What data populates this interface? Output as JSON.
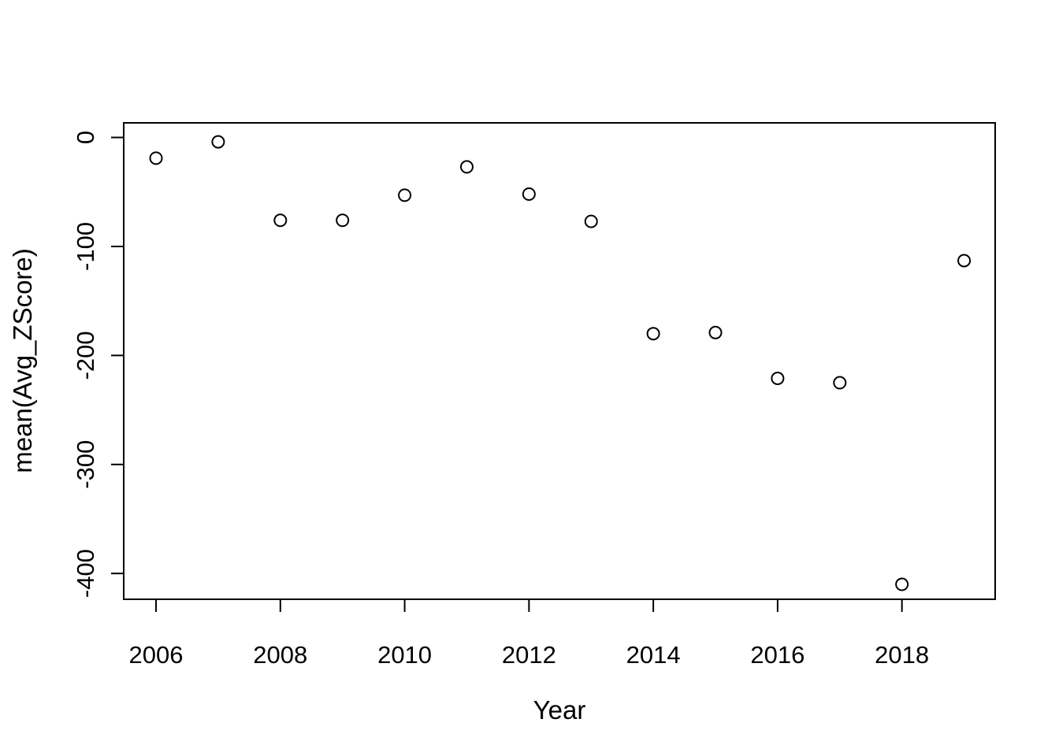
{
  "page": {
    "background_color": "#ffffff",
    "foreground_color": "#000000"
  },
  "chart_data": {
    "type": "scatter",
    "title": "",
    "xlabel": "Year",
    "ylabel": "mean(Avg_ZScore)",
    "marker": "open-circle",
    "marker_color": "#000000",
    "grid": false,
    "x": [
      2006,
      2007,
      2008,
      2009,
      2010,
      2011,
      2012,
      2013,
      2014,
      2015,
      2016,
      2017,
      2018,
      2019
    ],
    "y": [
      -19,
      -4,
      -76,
      -76,
      -53,
      -27,
      -52,
      -77,
      -180,
      -179,
      -221,
      -225,
      -410,
      -113
    ],
    "x_ticks": [
      2006,
      2008,
      2010,
      2012,
      2014,
      2016,
      2018
    ],
    "y_ticks": [
      0,
      -100,
      -200,
      -300,
      -400
    ],
    "xlim": [
      2005.48,
      2019.5
    ],
    "ylim": [
      -423.7,
      13.4
    ]
  }
}
